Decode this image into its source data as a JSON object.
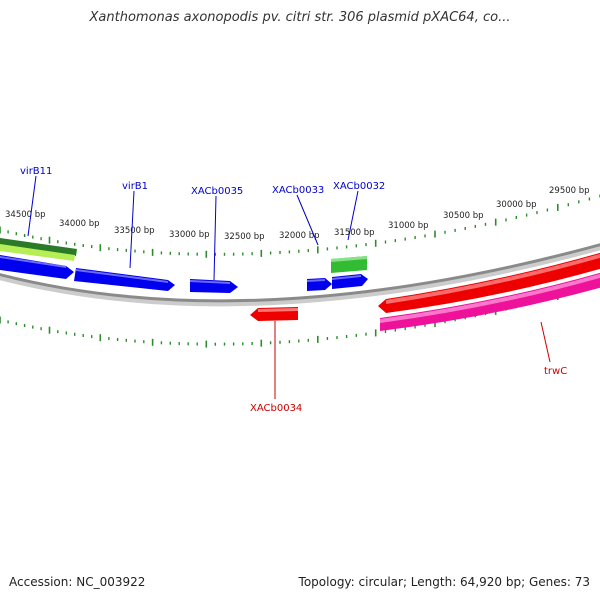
{
  "title": "Xanthomonas axonopodis pv. citri str. 306 plasmid pXAC64, co...",
  "colors": {
    "background": "#ffffff",
    "backbone": "#888888",
    "tick": "#2e8b2e",
    "scale_text": "#222222",
    "forward_label": "#0000cc",
    "reverse_label": "#cc0000",
    "gene_blue": "#0000ee",
    "gene_red": "#ee0000",
    "gene_magenta": "#ee1199",
    "gene_green": "#33aa33",
    "gene_lightgreen": "#aaee44",
    "gene_darkgreen": "#227722"
  },
  "scale_labels": [
    "34500 bp",
    "34000 bp",
    "33500 bp",
    "33000 bp",
    "32500 bp",
    "32000 bp",
    "31500 bp",
    "31000 bp",
    "30500 bp",
    "30000 bp",
    "29500 bp"
  ],
  "gene_labels": {
    "virB11": "virB11",
    "virB1": "virB1",
    "XACb0035": "XACb0035",
    "XACb0033": "XACb0033",
    "XACb0032": "XACb0032",
    "XACb0034": "XACb0034",
    "trwC": "trwC"
  },
  "footer": {
    "accession": "Accession: NC_003922",
    "info": "Topology: circular; Length: 64,920 bp; Genes: 73"
  }
}
